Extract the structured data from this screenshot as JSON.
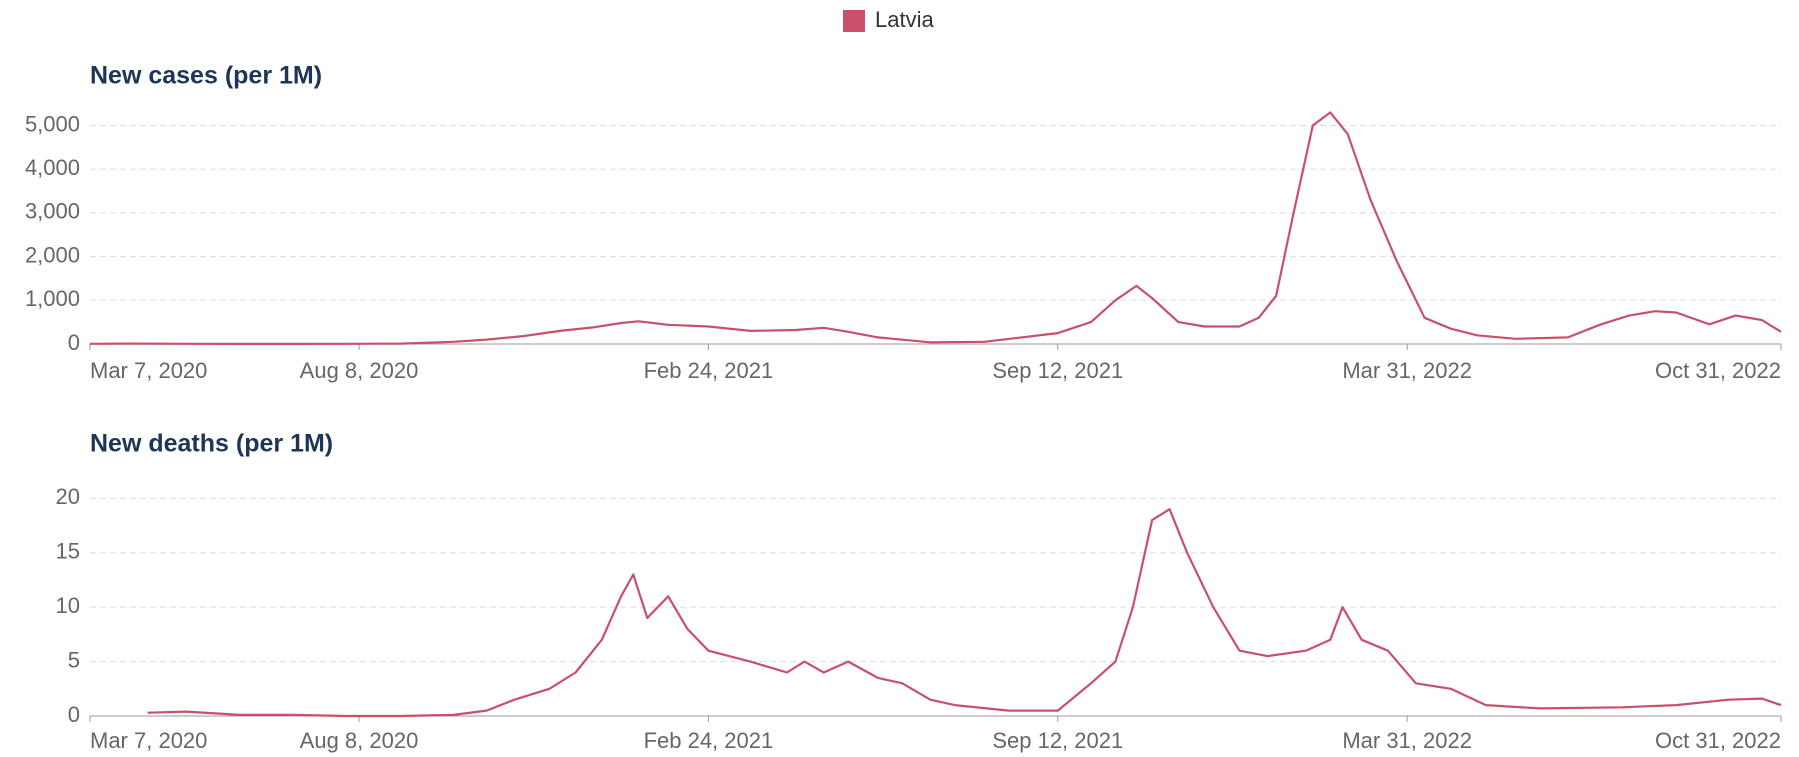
{
  "chart_data": [
    {
      "type": "line",
      "title": "New cases (per 1M)",
      "x": [
        "2020-03-07",
        "2020-04-01",
        "2020-05-01",
        "2020-06-01",
        "2020-07-01",
        "2020-08-01",
        "2020-09-01",
        "2020-10-01",
        "2020-10-20",
        "2020-11-10",
        "2020-12-01",
        "2020-12-20",
        "2021-01-05",
        "2021-01-15",
        "2021-02-01",
        "2021-02-24",
        "2021-03-20",
        "2021-04-15",
        "2021-05-01",
        "2021-05-15",
        "2021-06-01",
        "2021-07-01",
        "2021-08-01",
        "2021-09-12",
        "2021-10-01",
        "2021-10-15",
        "2021-10-27",
        "2021-11-05",
        "2021-11-20",
        "2021-12-05",
        "2021-12-25",
        "2022-01-05",
        "2022-01-15",
        "2022-01-25",
        "2022-02-05",
        "2022-02-15",
        "2022-02-25",
        "2022-03-10",
        "2022-03-25",
        "2022-04-10",
        "2022-04-25",
        "2022-05-10",
        "2022-06-01",
        "2022-07-01",
        "2022-07-20",
        "2022-08-05",
        "2022-08-20",
        "2022-09-01",
        "2022-09-20",
        "2022-10-05",
        "2022-10-20",
        "2022-10-31"
      ],
      "series": [
        {
          "name": "Latvia",
          "color": "#c8506a",
          "values": [
            5,
            10,
            5,
            3,
            3,
            5,
            10,
            50,
            100,
            180,
            300,
            380,
            480,
            520,
            440,
            400,
            300,
            320,
            370,
            280,
            150,
            40,
            50,
            250,
            500,
            1000,
            1330,
            1050,
            500,
            400,
            400,
            600,
            1100,
            3000,
            5000,
            5300,
            4800,
            3300,
            1900,
            600,
            350,
            200,
            120,
            150,
            450,
            650,
            750,
            720,
            450,
            650,
            550,
            280
          ]
        }
      ],
      "xlim": [
        "2020-03-07",
        "2022-10-31"
      ],
      "xticks": [
        {
          "value": "2020-03-07",
          "label": "Mar 7, 2020"
        },
        {
          "value": "2020-08-08",
          "label": "Aug 8, 2020"
        },
        {
          "value": "2021-02-24",
          "label": "Feb 24, 2021"
        },
        {
          "value": "2021-09-12",
          "label": "Sep 12, 2021"
        },
        {
          "value": "2022-03-31",
          "label": "Mar 31, 2022"
        },
        {
          "value": "2022-10-31",
          "label": "Oct 31, 2022"
        }
      ],
      "ylim": [
        0,
        5400
      ],
      "yticks": [
        0,
        {
          "value": 1000,
          "label": "1,000"
        },
        {
          "value": 2000,
          "label": "2,000"
        },
        {
          "value": 3000,
          "label": "3,000"
        },
        {
          "value": 4000,
          "label": "4,000"
        },
        {
          "value": 5000,
          "label": "5,000"
        }
      ],
      "grid": true
    },
    {
      "type": "line",
      "title": "New deaths (per 1M)",
      "x": [
        "2020-04-09",
        "2020-05-01",
        "2020-06-01",
        "2020-07-01",
        "2020-08-01",
        "2020-09-01",
        "2020-10-01",
        "2020-10-20",
        "2020-11-05",
        "2020-11-25",
        "2020-12-10",
        "2020-12-25",
        "2021-01-05",
        "2021-01-12",
        "2021-01-20",
        "2021-02-01",
        "2021-02-12",
        "2021-02-24",
        "2021-03-20",
        "2021-04-10",
        "2021-04-20",
        "2021-05-01",
        "2021-05-15",
        "2021-06-01",
        "2021-06-15",
        "2021-07-01",
        "2021-07-15",
        "2021-08-15",
        "2021-09-12",
        "2021-10-01",
        "2021-10-15",
        "2021-10-25",
        "2021-11-05",
        "2021-11-15",
        "2021-11-25",
        "2021-12-10",
        "2021-12-25",
        "2022-01-10",
        "2022-02-01",
        "2022-02-15",
        "2022-02-22",
        "2022-03-05",
        "2022-03-20",
        "2022-04-05",
        "2022-04-25",
        "2022-05-15",
        "2022-06-15",
        "2022-08-01",
        "2022-09-01",
        "2022-10-01",
        "2022-10-20",
        "2022-10-31"
      ],
      "series": [
        {
          "name": "Latvia",
          "color": "#c8506a",
          "values": [
            0.3,
            0.4,
            0.1,
            0.1,
            0,
            0,
            0.1,
            0.5,
            1.5,
            2.5,
            4,
            7,
            11,
            13,
            9,
            11,
            8,
            6,
            5,
            4,
            5,
            4,
            5,
            3.5,
            3,
            1.5,
            1,
            0.5,
            0.5,
            3,
            5,
            10,
            18,
            19,
            15,
            10,
            6,
            5.5,
            6,
            7,
            10,
            7,
            6,
            3,
            2.5,
            1,
            0.7,
            0.8,
            1,
            1.5,
            1.6,
            1
          ]
        }
      ],
      "xlim": [
        "2020-03-07",
        "2022-10-31"
      ],
      "xticks": [
        {
          "value": "2020-03-07",
          "label": "Mar 7, 2020"
        },
        {
          "value": "2020-08-08",
          "label": "Aug 8, 2020"
        },
        {
          "value": "2021-02-24",
          "label": "Feb 24, 2021"
        },
        {
          "value": "2021-09-12",
          "label": "Sep 12, 2021"
        },
        {
          "value": "2022-03-31",
          "label": "Mar 31, 2022"
        },
        {
          "value": "2022-10-31",
          "label": "Oct 31, 2022"
        }
      ],
      "ylim": [
        0,
        21.5
      ],
      "yticks": [
        0,
        5,
        10,
        15,
        20
      ],
      "grid": true
    }
  ]
}
